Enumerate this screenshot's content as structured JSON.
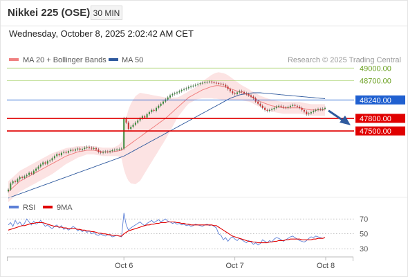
{
  "header": {
    "title": "Nikkei 225 (OSE)",
    "timeframe": "30 MIN",
    "datetime": "Wednesday, October 8, 2025 2:02:42 AM CET"
  },
  "colors": {
    "bollinger": "#f08080",
    "ma50": "#2f5a9e",
    "resistance": "#8cc43c",
    "pivot": "#2060d0",
    "support": "#e00000",
    "rsi": "#5b7fd6",
    "rsi_ma": "#e00000",
    "arrow": "#2f5a9e"
  },
  "chart_data": [
    {
      "type": "line",
      "name": "price",
      "legend": [
        {
          "label": "MA 20 + Bollinger Bands",
          "color": "#f08080"
        },
        {
          "label": "MA 50",
          "color": "#2f5a9e"
        }
      ],
      "legend_position": "top-left",
      "watermark": "Research © 2025 Trading Central",
      "x_ticks": [
        "Oct 6",
        "Oct 7",
        "Oct 8"
      ],
      "ylim": [
        45800,
        49600
      ],
      "series_close": [
        46100,
        46250,
        46300,
        46280,
        46350,
        46400,
        46380,
        46420,
        46450,
        46500,
        46480,
        46550,
        46600,
        46650,
        46700,
        46750,
        46720,
        46780,
        46800,
        46850,
        46900,
        46950,
        46920,
        46980,
        47000,
        46980,
        47020,
        47050,
        47030,
        47060,
        47080,
        47050,
        47070,
        47100,
        47120,
        47100,
        47080,
        47090,
        47060,
        47000,
        46980,
        47000,
        47010,
        47000,
        47020,
        47040,
        47050,
        47060,
        47070,
        47080,
        47800,
        47700,
        47550,
        47600,
        47650,
        47700,
        47750,
        47800,
        47850,
        47820,
        47900,
        47950,
        48000,
        47980,
        48050,
        48100,
        48150,
        48200,
        48250,
        48300,
        48350,
        48380,
        48400,
        48420,
        48450,
        48480,
        48500,
        48520,
        48550,
        48570,
        48580,
        48600,
        48620,
        48640,
        48650,
        48660,
        48670,
        48680,
        48660,
        48650,
        48640,
        48630,
        48620,
        48600,
        48560,
        48500,
        48450,
        48400,
        48380,
        48420,
        48450,
        48430,
        48400,
        48380,
        48350,
        48320,
        48280,
        48200,
        48150,
        48100,
        48050,
        48000,
        47980,
        48000,
        48020,
        48050,
        48080,
        48100,
        48080,
        48060,
        48050,
        48070,
        48100,
        48120,
        48100,
        48080,
        48050,
        48000,
        47960,
        47900,
        47920,
        47950,
        47980,
        48000,
        48020,
        48010,
        48030,
        48050
      ],
      "ma20": [
        46050,
        46100,
        46150,
        46200,
        46250,
        46300,
        46330,
        46360,
        46390,
        46420,
        46450,
        46480,
        46510,
        46540,
        46570,
        46600,
        46630,
        46660,
        46690,
        46720,
        46750,
        46780,
        46810,
        46840,
        46870,
        46900,
        46920,
        46940,
        46960,
        46980,
        47000,
        47010,
        47020,
        47030,
        47040,
        47040,
        47040,
        47040,
        47030,
        47020,
        47010,
        47000,
        47000,
        47000,
        47000,
        47000,
        47010,
        47020,
        47030,
        47040,
        47080,
        47120,
        47160,
        47200,
        47240,
        47280,
        47320,
        47360,
        47400,
        47440,
        47480,
        47520,
        47560,
        47600,
        47640,
        47680,
        47720,
        47760,
        47800,
        47850,
        47900,
        47950,
        48000,
        48050,
        48100,
        48150,
        48200,
        48250,
        48300,
        48330,
        48360,
        48390,
        48420,
        48450,
        48480,
        48500,
        48520,
        48540,
        48560,
        48570,
        48580,
        48580,
        48570,
        48560,
        48550,
        48530,
        48510,
        48490,
        48470,
        48450,
        48430,
        48410,
        48390,
        48370,
        48350,
        48320,
        48290,
        48260,
        48230,
        48200,
        48180,
        48160,
        48140,
        48120,
        48100,
        48090,
        48080,
        48070,
        48060,
        48050,
        48050,
        48050,
        48050,
        48050,
        48050,
        48050,
        48050,
        48040,
        48030,
        48020,
        48010,
        48000,
        48000,
        48000,
        48000,
        48000,
        48000,
        48000
      ],
      "ma50": [
        45900,
        45920,
        45940,
        45960,
        45980,
        46000,
        46020,
        46040,
        46060,
        46080,
        46100,
        46120,
        46140,
        46160,
        46180,
        46200,
        46220,
        46240,
        46260,
        46280,
        46300,
        46320,
        46340,
        46360,
        46380,
        46400,
        46420,
        46440,
        46460,
        46480,
        46500,
        46520,
        46540,
        46560,
        46580,
        46600,
        46620,
        46640,
        46660,
        46680,
        46700,
        46720,
        46740,
        46760,
        46780,
        46800,
        46820,
        46840,
        46860,
        46880,
        46900,
        46930,
        46960,
        46990,
        47020,
        47050,
        47080,
        47110,
        47140,
        47170,
        47200,
        47230,
        47260,
        47290,
        47320,
        47350,
        47380,
        47410,
        47440,
        47470,
        47500,
        47530,
        47560,
        47590,
        47620,
        47650,
        47680,
        47710,
        47740,
        47770,
        47800,
        47830,
        47860,
        47890,
        47920,
        47950,
        47980,
        48010,
        48040,
        48070,
        48100,
        48130,
        48160,
        48190,
        48220,
        48250,
        48280,
        48300,
        48320,
        48340,
        48360,
        48370,
        48380,
        48390,
        48400,
        48405,
        48410,
        48410,
        48410,
        48410,
        48405,
        48400,
        48395,
        48390,
        48385,
        48380,
        48375,
        48370,
        48365,
        48360,
        48355,
        48350,
        48345,
        48340,
        48335,
        48330,
        48325,
        48320,
        48315,
        48310,
        48305,
        48300,
        48295,
        48290,
        48285,
        48280,
        48275,
        48270
      ],
      "band_halfwidth": [
        250,
        250,
        250,
        250,
        250,
        250,
        250,
        250,
        250,
        250,
        250,
        250,
        250,
        250,
        250,
        250,
        250,
        250,
        250,
        250,
        240,
        230,
        220,
        210,
        200,
        190,
        180,
        170,
        160,
        150,
        140,
        130,
        120,
        110,
        100,
        100,
        100,
        100,
        100,
        100,
        100,
        100,
        100,
        100,
        100,
        100,
        110,
        120,
        150,
        200,
        500,
        700,
        850,
        950,
        1000,
        1050,
        1050,
        1050,
        1000,
        950,
        900,
        850,
        800,
        750,
        700,
        650,
        600,
        550,
        500,
        450,
        400,
        350,
        300,
        250,
        220,
        200,
        180,
        160,
        150,
        150,
        150,
        150,
        160,
        180,
        200,
        220,
        240,
        260,
        280,
        300,
        310,
        320,
        320,
        320,
        310,
        300,
        280,
        260,
        240,
        220,
        200,
        180,
        170,
        160,
        150,
        140,
        140,
        140,
        140,
        140,
        140,
        140,
        140,
        140,
        140,
        140,
        140,
        140,
        140,
        140,
        140,
        140,
        140,
        140,
        140,
        140,
        140,
        140,
        140,
        140,
        140,
        140,
        140,
        140,
        140,
        140,
        140,
        140
      ],
      "levels": [
        {
          "value": 49000,
          "label": "49000.00",
          "kind": "resistance"
        },
        {
          "value": 48700,
          "label": "48700.00",
          "kind": "resistance"
        },
        {
          "value": 48240,
          "label": "48240.00",
          "kind": "pivot"
        },
        {
          "value": 47800,
          "label": "47800.00",
          "kind": "support"
        },
        {
          "value": 47500,
          "label": "47500.00",
          "kind": "support"
        }
      ]
    },
    {
      "type": "line",
      "name": "rsi",
      "legend": [
        {
          "label": "RSI",
          "color": "#5b7fd6"
        },
        {
          "label": "9MA",
          "color": "#e00000"
        }
      ],
      "ylim": [
        20,
        85
      ],
      "y_ticks": [
        30,
        50,
        70
      ],
      "rsi": [
        62,
        65,
        60,
        68,
        63,
        66,
        61,
        64,
        70,
        66,
        62,
        67,
        63,
        65,
        68,
        64,
        60,
        62,
        59,
        57,
        60,
        62,
        58,
        61,
        56,
        58,
        55,
        57,
        60,
        58,
        54,
        56,
        53,
        55,
        52,
        54,
        50,
        52,
        49,
        48,
        50,
        48,
        47,
        49,
        48,
        46,
        47,
        48,
        47,
        46,
        78,
        62,
        55,
        58,
        60,
        62,
        64,
        66,
        63,
        61,
        64,
        66,
        68,
        65,
        67,
        69,
        66,
        68,
        70,
        67,
        66,
        64,
        65,
        63,
        64,
        62,
        63,
        61,
        62,
        60,
        61,
        63,
        62,
        61,
        60,
        62,
        63,
        61,
        62,
        60,
        58,
        50,
        48,
        42,
        45,
        40,
        44,
        46,
        43,
        41,
        44,
        42,
        40,
        38,
        41,
        39,
        36,
        38,
        35,
        37,
        42,
        40,
        38,
        41,
        39,
        43,
        45,
        44,
        42,
        40,
        42,
        44,
        46,
        47,
        45,
        43,
        41,
        40,
        39,
        41,
        44,
        46,
        45,
        47,
        46,
        45,
        44,
        45
      ],
      "rsi_ma": [
        55,
        56,
        57,
        58,
        59,
        60,
        61,
        61,
        62,
        63,
        64,
        64,
        65,
        65,
        65,
        65,
        64,
        63,
        62,
        61,
        60,
        60,
        59,
        59,
        58,
        58,
        57,
        57,
        57,
        57,
        56,
        56,
        55,
        55,
        54,
        54,
        53,
        53,
        52,
        51,
        51,
        50,
        50,
        49,
        49,
        48,
        48,
        48,
        47,
        47,
        50,
        52,
        54,
        55,
        56,
        57,
        58,
        59,
        60,
        61,
        62,
        62,
        63,
        63,
        64,
        64,
        65,
        65,
        65,
        66,
        66,
        66,
        66,
        65,
        65,
        64,
        64,
        63,
        63,
        62,
        62,
        62,
        62,
        62,
        62,
        62,
        62,
        62,
        62,
        61,
        61,
        59,
        57,
        55,
        53,
        51,
        49,
        47,
        46,
        45,
        44,
        43,
        42,
        41,
        40,
        40,
        39,
        39,
        38,
        38,
        38,
        38,
        38,
        39,
        39,
        40,
        40,
        41,
        41,
        41,
        42,
        42,
        43,
        43,
        43,
        43,
        43,
        42,
        42,
        42,
        42,
        42,
        43,
        43,
        44,
        44,
        44,
        45
      ]
    }
  ]
}
